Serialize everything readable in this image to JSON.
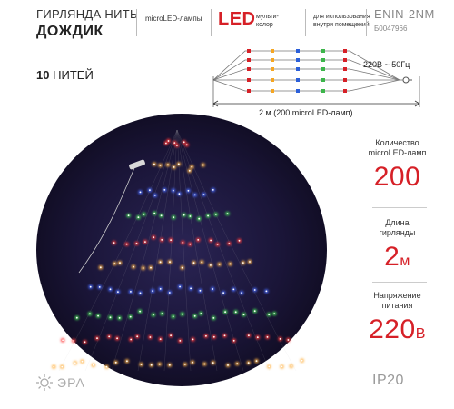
{
  "header": {
    "product_line1": "ГИРЛЯНДА НИТЬ",
    "product_line2": "ДОЖДИК",
    "lamp_type": "microLED-лампы",
    "led_label": "LED",
    "color_line1": "мульти-",
    "color_line2": "колор",
    "usage_line1": "для использования",
    "usage_line2": "внутри помещений",
    "model": "ENIN-2NM",
    "article": "Б0047966"
  },
  "threads": {
    "count": "10",
    "label": "НИТЕЙ"
  },
  "diagram": {
    "voltage_label": "220В ~ 50Гц",
    "length_label": "2 м (200 microLED-ламп)",
    "led_colors": [
      "#d62027",
      "#f5a623",
      "#2b5fd9",
      "#3cb54a",
      "#d62027"
    ]
  },
  "stats": [
    {
      "label_line1": "Количество",
      "label_line2": "microLED-ламп",
      "value": "200",
      "unit": ""
    },
    {
      "label_line1": "Длина",
      "label_line2": "гирлянды",
      "value": "2",
      "unit": "м"
    },
    {
      "label_line1": "Напряжение",
      "label_line2": "питания",
      "value": "220",
      "unit": "В"
    }
  ],
  "protection": "IP20",
  "brand": "ЭРА",
  "photo": {
    "row_colors": [
      "#ff3b3b",
      "#ffb347",
      "#4a6cff",
      "#44dd55",
      "#ff3b3b",
      "#ffb347",
      "#4a6cff",
      "#44dd55",
      "#ff3b3b",
      "#ffb347"
    ]
  }
}
